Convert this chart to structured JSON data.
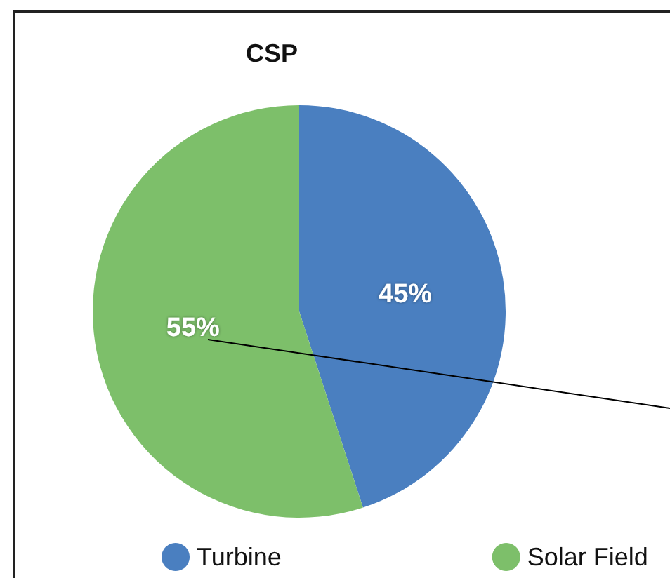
{
  "chart_data": {
    "type": "pie",
    "title": "CSP",
    "categories": [
      "Turbine",
      "Solar Field"
    ],
    "values": [
      45,
      55
    ],
    "colors": [
      "#4a7fc0",
      "#7dbf6a"
    ],
    "value_labels": [
      "45%",
      "55%"
    ],
    "legend": "bottom"
  }
}
